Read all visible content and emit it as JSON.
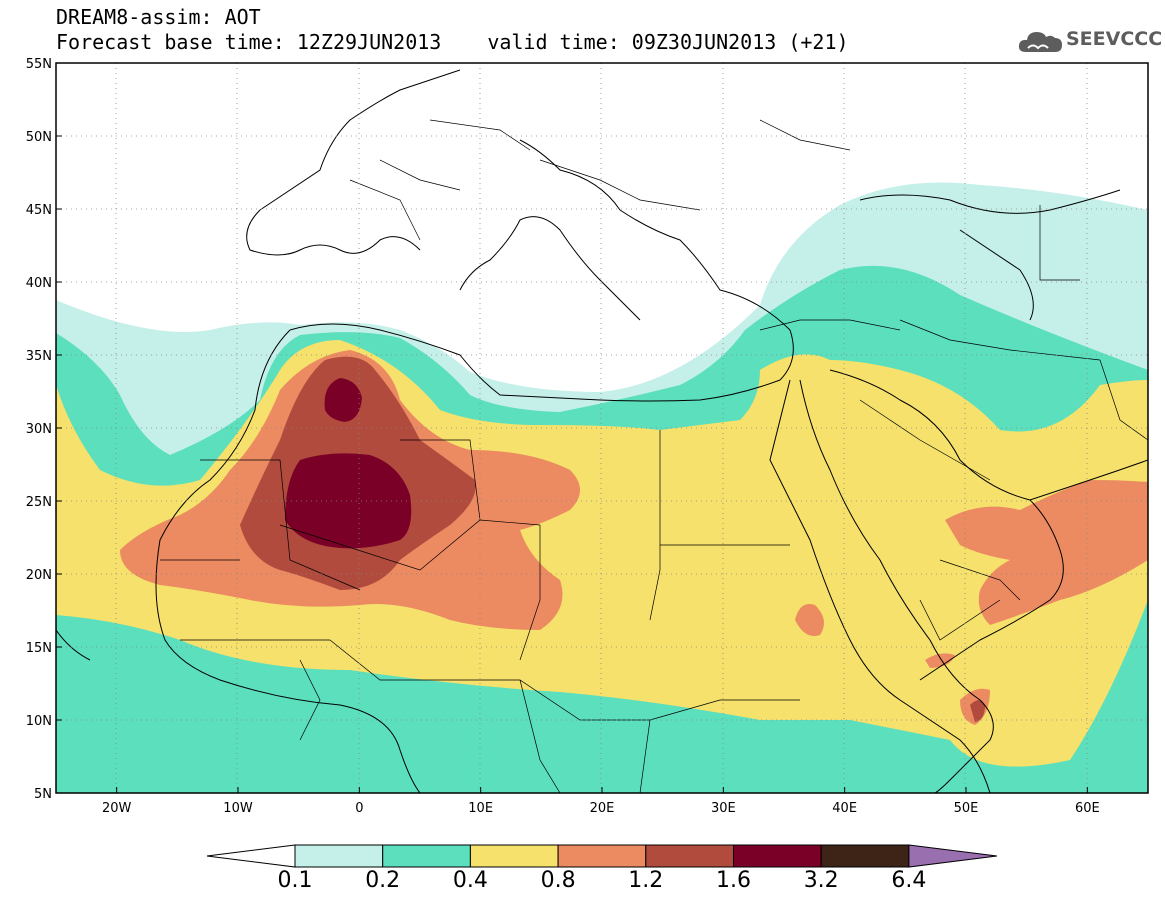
{
  "title": {
    "line1": "DREAM8-assim: AOT",
    "base_time": "Forecast base time: 12Z29JUN2013",
    "valid_time": "valid time: 09Z30JUN2013 (+21)"
  },
  "logo": {
    "text": "SEEVCCC",
    "icon": "cloud-icon"
  },
  "map": {
    "projection": "lat-lon",
    "lon_range": [
      -25,
      65
    ],
    "lat_range": [
      5,
      55
    ],
    "lat_ticks": [
      "55N",
      "50N",
      "45N",
      "40N",
      "35N",
      "30N",
      "25N",
      "20N",
      "15N",
      "10N",
      "5N"
    ],
    "lon_ticks": [
      "20W",
      "10W",
      "0",
      "10E",
      "20E",
      "30E",
      "40E",
      "50E",
      "60E"
    ],
    "gridlines": "dotted",
    "variable": "Aerosol Optical Thickness"
  },
  "legend": {
    "labels": [
      "0.1",
      "0.2",
      "0.4",
      "0.8",
      "1.2",
      "1.6",
      "3.2",
      "6.4"
    ],
    "colors": [
      "#ffffff",
      "#c5efe9",
      "#5bdfbd",
      "#f5e16b",
      "#ec8a62",
      "#b04b3e",
      "#7b0028",
      "#3e2417",
      "#9a6fb0"
    ],
    "extend": "both"
  }
}
